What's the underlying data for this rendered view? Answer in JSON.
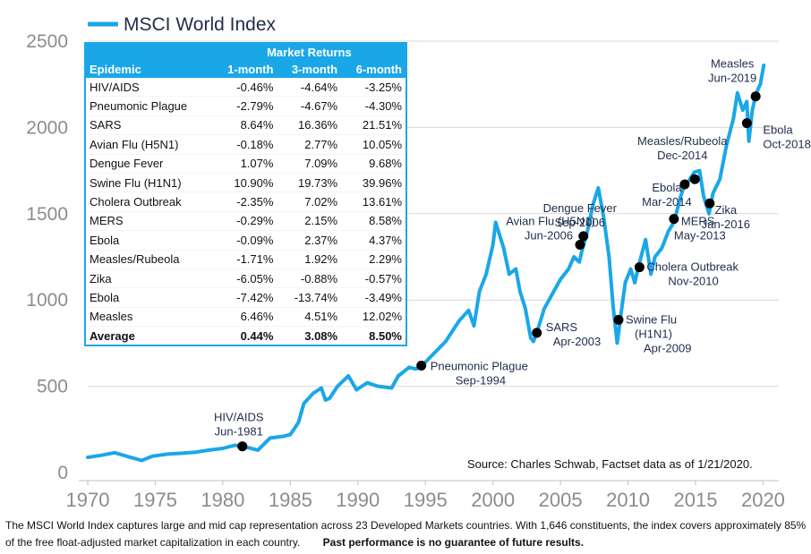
{
  "chart_data": {
    "type": "line",
    "title": "MSCI World Index",
    "legend": "top-left",
    "xlim": [
      1970,
      2020.5
    ],
    "ylim": [
      0,
      2500
    ],
    "xticks": [
      1970,
      1975,
      1980,
      1985,
      1990,
      1995,
      2000,
      2005,
      2010,
      2015,
      2020
    ],
    "yticks": [
      0,
      500,
      1000,
      1500,
      2000,
      2500
    ],
    "grid": true,
    "color": "#1aa7e8",
    "series": [
      {
        "name": "MSCI World Index",
        "x": [
          1970,
          1971,
          1972,
          1973,
          1974,
          1974.8,
          1976,
          1977,
          1978,
          1979,
          1980,
          1980.9,
          1981.5,
          1982.6,
          1983.5,
          1984.5,
          1985,
          1985.6,
          1986,
          1986.7,
          1987.3,
          1987.6,
          1987.9,
          1988.5,
          1989.3,
          1989.9,
          1990.7,
          1991.5,
          1992.5,
          1993,
          1993.8,
          1994.3,
          1994.75,
          1995.5,
          1996.5,
          1997.5,
          1998.2,
          1998.6,
          1999,
          1999.5,
          2000,
          2000.2,
          2000.8,
          2001.2,
          2001.7,
          2002,
          2002.4,
          2002.8,
          2003,
          2003.25,
          2003.8,
          2004.5,
          2005,
          2005.6,
          2006,
          2006.4,
          2006.6,
          2007,
          2007.4,
          2007.8,
          2008.2,
          2008.6,
          2008.9,
          2009.2,
          2009.5,
          2009.8,
          2010.2,
          2010.5,
          2010.8,
          2011.3,
          2011.7,
          2012,
          2012.5,
          2013,
          2013.4,
          2013.9,
          2014.2,
          2014.5,
          2014.9,
          2015.3,
          2015.6,
          2016,
          2016.3,
          2016.8,
          2017.3,
          2017.8,
          2018.1,
          2018.5,
          2018.8,
          2018.95,
          2019.2,
          2019.5,
          2019.8,
          2020.05
        ],
        "values": [
          88,
          100,
          115,
          92,
          70,
          95,
          108,
          112,
          118,
          130,
          140,
          158,
          152,
          130,
          200,
          210,
          220,
          290,
          400,
          460,
          490,
          420,
          430,
          500,
          560,
          480,
          520,
          500,
          490,
          560,
          610,
          600,
          620,
          680,
          760,
          880,
          940,
          850,
          1050,
          1150,
          1320,
          1450,
          1300,
          1150,
          1180,
          1050,
          950,
          780,
          760,
          810,
          950,
          1050,
          1120,
          1180,
          1250,
          1220,
          1290,
          1400,
          1550,
          1650,
          1480,
          1250,
          960,
          750,
          930,
          1100,
          1180,
          1100,
          1200,
          1350,
          1150,
          1250,
          1300,
          1400,
          1450,
          1600,
          1670,
          1690,
          1740,
          1750,
          1600,
          1500,
          1620,
          1700,
          1900,
          2050,
          2200,
          2100,
          2150,
          1920,
          2100,
          2200,
          2250,
          2360
        ]
      }
    ],
    "events": [
      {
        "label": "HIV/AIDS",
        "date": "Jun-1981",
        "x": 1981.45,
        "y": 152
      },
      {
        "label": "Pneumonic Plague",
        "date": "Sep-1994",
        "x": 1994.7,
        "y": 620
      },
      {
        "label": "SARS",
        "date": "Apr-2003",
        "x": 2003.25,
        "y": 810
      },
      {
        "label": "Avian Flu (H5N1)",
        "date": "Jun-2006",
        "x": 2006.45,
        "y": 1320
      },
      {
        "label": "Dengue Fever",
        "date": "Sep-2006",
        "x": 2006.7,
        "y": 1370
      },
      {
        "label": "Swine Flu",
        "label2": "(H1N1)",
        "date": "Apr-2009",
        "x": 2009.3,
        "y": 885
      },
      {
        "label": "Cholera Outbreak",
        "date": "Nov-2010",
        "x": 2010.85,
        "y": 1190
      },
      {
        "label": "MERS",
        "date": "May-2013",
        "x": 2013.4,
        "y": 1470
      },
      {
        "label": "Ebola",
        "date": "Mar-2014",
        "x": 2014.2,
        "y": 1670
      },
      {
        "label": "Measles/Rubeola",
        "date": "Dec-2014",
        "x": 2014.95,
        "y": 1700
      },
      {
        "label": "Zika",
        "date": "Jan-2016",
        "x": 2016.05,
        "y": 1560
      },
      {
        "label": "Ebola",
        "date": "Oct-2018",
        "x": 2018.8,
        "y": 2025
      },
      {
        "label": "Measles",
        "date": "Jun-2019",
        "x": 2019.45,
        "y": 2180
      }
    ],
    "table": {
      "header_group": "Market Returns",
      "columns": [
        "Epidemic",
        "1-month",
        "3-month",
        "6-month"
      ],
      "rows": [
        [
          "HIV/AIDS",
          "-0.46%",
          "-4.64%",
          "-3.25%"
        ],
        [
          "Pneumonic Plague",
          "-2.79%",
          "-4.67%",
          "-4.30%"
        ],
        [
          "SARS",
          "8.64%",
          "16.36%",
          "21.51%"
        ],
        [
          "Avian Flu (H5N1)",
          "-0.18%",
          "2.77%",
          "10.05%"
        ],
        [
          "Dengue Fever",
          "1.07%",
          "7.09%",
          "9.68%"
        ],
        [
          "Swine Flu (H1N1)",
          "10.90%",
          "19.73%",
          "39.96%"
        ],
        [
          "Cholera Outbreak",
          "-2.35%",
          "7.02%",
          "13.61%"
        ],
        [
          "MERS",
          "-0.29%",
          "2.15%",
          "8.58%"
        ],
        [
          "Ebola",
          "-0.09%",
          "2.37%",
          "4.37%"
        ],
        [
          "Measles/Rubeola",
          "-1.71%",
          "1.92%",
          "2.29%"
        ],
        [
          "Zika",
          "-6.05%",
          "-0.88%",
          "-0.57%"
        ],
        [
          "Ebola",
          "-7.42%",
          "-13.74%",
          "-3.49%"
        ],
        [
          "Measles",
          "6.46%",
          "4.51%",
          "12.02%"
        ]
      ],
      "average": [
        "Average",
        "0.44%",
        "3.08%",
        "8.50%"
      ]
    },
    "source": "Source: Charles Schwab, Factset data as of 1/21/2020."
  },
  "footnote": {
    "text": "The MSCI World Index captures large and mid cap representation across 23 Developed Markets countries. With 1,646 constituents, the index covers approximately 85% of the free float-adjusted market capitalization in each country.",
    "disclaimer": "Past performance is no guarantee of future results."
  }
}
